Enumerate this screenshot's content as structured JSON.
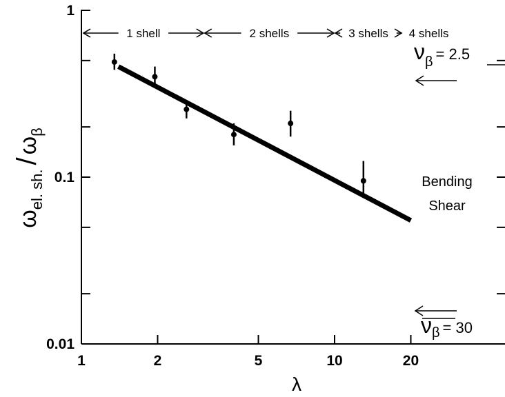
{
  "chart_data": {
    "type": "scatter",
    "xscale": "log",
    "yscale": "log",
    "xlim": [
      1,
      20
    ],
    "ylim": [
      0.01,
      1
    ],
    "xlabel": "λ",
    "ylabel_main": "ω",
    "ylabel_main_sub": "el. sh.",
    "ylabel_slash": "/",
    "ylabel_den": "ω",
    "ylabel_den_sub": "β",
    "x_ticks": [
      {
        "value": 1,
        "label": "1"
      },
      {
        "value": 2,
        "label": "2"
      },
      {
        "value": 5,
        "label": "5"
      },
      {
        "value": 10,
        "label": "10"
      },
      {
        "value": 20,
        "label": "20"
      }
    ],
    "y_ticks": [
      {
        "value": 0.01,
        "label": "0.01"
      },
      {
        "value": 0.1,
        "label": "0.1"
      },
      {
        "value": 1,
        "label": "1"
      }
    ],
    "points": [
      {
        "x": 1.35,
        "y": 0.49,
        "err_low": 0.44,
        "err_high": 0.55
      },
      {
        "x": 1.95,
        "y": 0.4,
        "err_low": 0.35,
        "err_high": 0.46
      },
      {
        "x": 2.6,
        "y": 0.255,
        "err_low": 0.225,
        "err_high": 0.29
      },
      {
        "x": 4.0,
        "y": 0.18,
        "err_low": 0.155,
        "err_high": 0.21
      },
      {
        "x": 6.7,
        "y": 0.21,
        "err_low": 0.175,
        "err_high": 0.25
      },
      {
        "x": 13.0,
        "y": 0.095,
        "err_low": 0.075,
        "err_high": 0.125
      }
    ],
    "fit_line": {
      "x": [
        1.4,
        20
      ],
      "y": [
        0.46,
        0.055
      ]
    },
    "regions": [
      {
        "label": "1 shell",
        "x_start": 1,
        "x_end": 3.05
      },
      {
        "label": "2 shells",
        "x_start": 3.05,
        "x_end": 10
      },
      {
        "label": "3 shells",
        "x_start": 10,
        "x_end": 18.5
      },
      {
        "label": "4 shells",
        "x_start": 18.5,
        "x_end": 30
      }
    ],
    "annotations": {
      "upper_nu": {
        "nu": "ν",
        "sub": "β",
        "value": "= 2.5"
      },
      "lower_nu": {
        "nu": "ν",
        "sub": "β",
        "value": "= 30"
      },
      "bending": "Bending",
      "shear": "Shear"
    }
  }
}
